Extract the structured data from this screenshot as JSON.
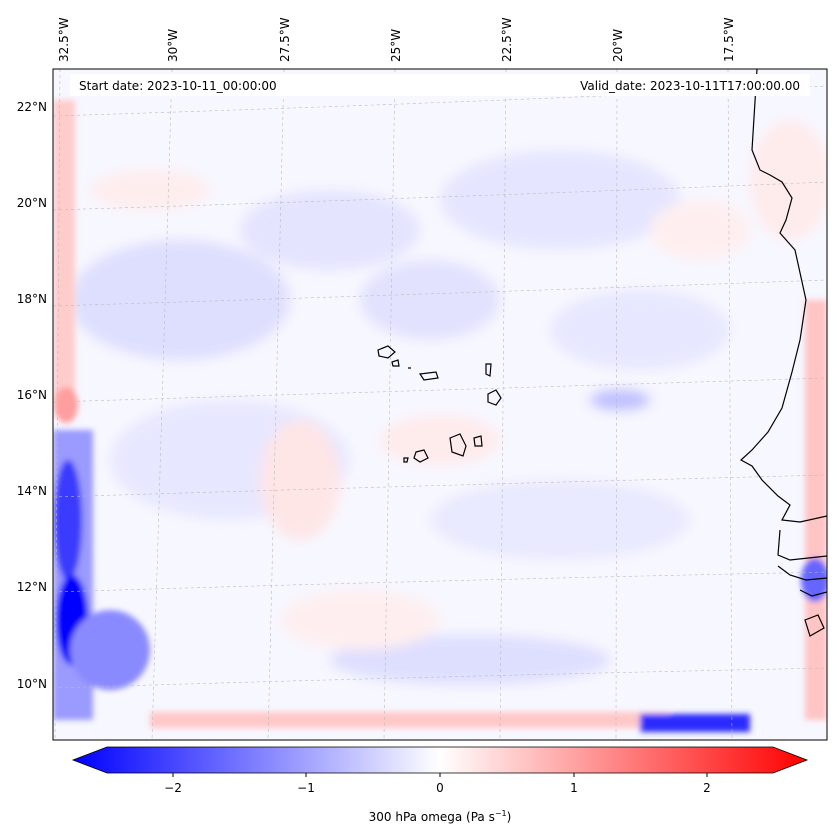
{
  "map": {
    "start_label": "Start date: 2023-10-11_00:00:00",
    "valid_label": "Valid_date: 2023-10-11T17:00:00.00",
    "longitudes": [
      "32.5°W",
      "30°W",
      "27.5°W",
      "25°W",
      "22.5°W",
      "20°W",
      "17.5°W"
    ],
    "latitudes": [
      "22°N",
      "20°N",
      "18°N",
      "16°N",
      "14°N",
      "12°N",
      "10°N"
    ],
    "gridlines": true
  },
  "colorbar": {
    "ticks": [
      "−2",
      "−1",
      "0",
      "1",
      "2"
    ],
    "label_main": "300 hPa omega (Pa s",
    "label_exp": "−1",
    "label_end": ")",
    "range": [
      -2.7,
      2.7
    ],
    "colormap": "bwr",
    "colors": {
      "low": "#0000ff",
      "mid": "#ffffff",
      "high": "#ff0000"
    }
  }
}
